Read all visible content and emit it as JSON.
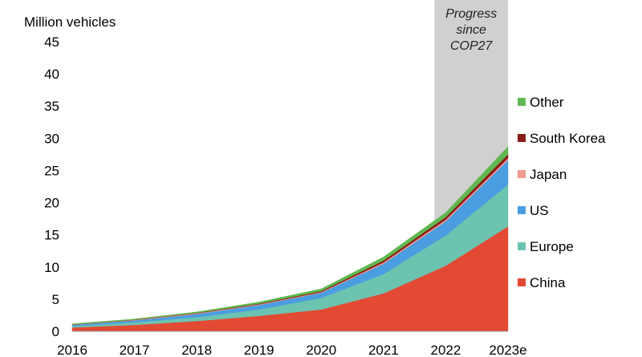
{
  "chart_data": {
    "type": "area",
    "stacked": true,
    "ylabel": "Million vehicles",
    "ylim": [
      0,
      45
    ],
    "yticks": [
      0,
      5,
      10,
      15,
      20,
      25,
      30,
      35,
      40,
      45
    ],
    "categories": [
      "2016",
      "2017",
      "2018",
      "2019",
      "2020",
      "2021",
      "2022",
      "2023e"
    ],
    "highlight": {
      "from": "2022",
      "to": "2023e",
      "label_lines": [
        "Progress",
        "since",
        "COP27"
      ]
    },
    "series": [
      {
        "name": "China",
        "color": "#e34a33",
        "values": [
          0.6,
          1.0,
          1.6,
          2.4,
          3.4,
          5.9,
          10.2,
          16.3
        ]
      },
      {
        "name": "Europe",
        "color": "#6cc3b0",
        "values": [
          0.2,
          0.4,
          0.6,
          1.0,
          1.8,
          3.0,
          4.7,
          6.5
        ]
      },
      {
        "name": "US",
        "color": "#4a9de0",
        "values": [
          0.2,
          0.3,
          0.5,
          0.7,
          0.8,
          1.6,
          2.2,
          3.8
        ]
      },
      {
        "name": "Japan",
        "color": "#f29b8f",
        "values": [
          0.05,
          0.07,
          0.1,
          0.1,
          0.1,
          0.2,
          0.25,
          0.3
        ]
      },
      {
        "name": "South Korea",
        "color": "#8b1a1a",
        "values": [
          0.02,
          0.04,
          0.06,
          0.1,
          0.15,
          0.3,
          0.4,
          0.6
        ]
      },
      {
        "name": "Other",
        "color": "#5fb84f",
        "values": [
          0.1,
          0.1,
          0.15,
          0.25,
          0.35,
          0.55,
          0.7,
          1.2
        ]
      }
    ],
    "legend_order": [
      "Other",
      "South Korea",
      "Japan",
      "US",
      "Europe",
      "China"
    ]
  }
}
